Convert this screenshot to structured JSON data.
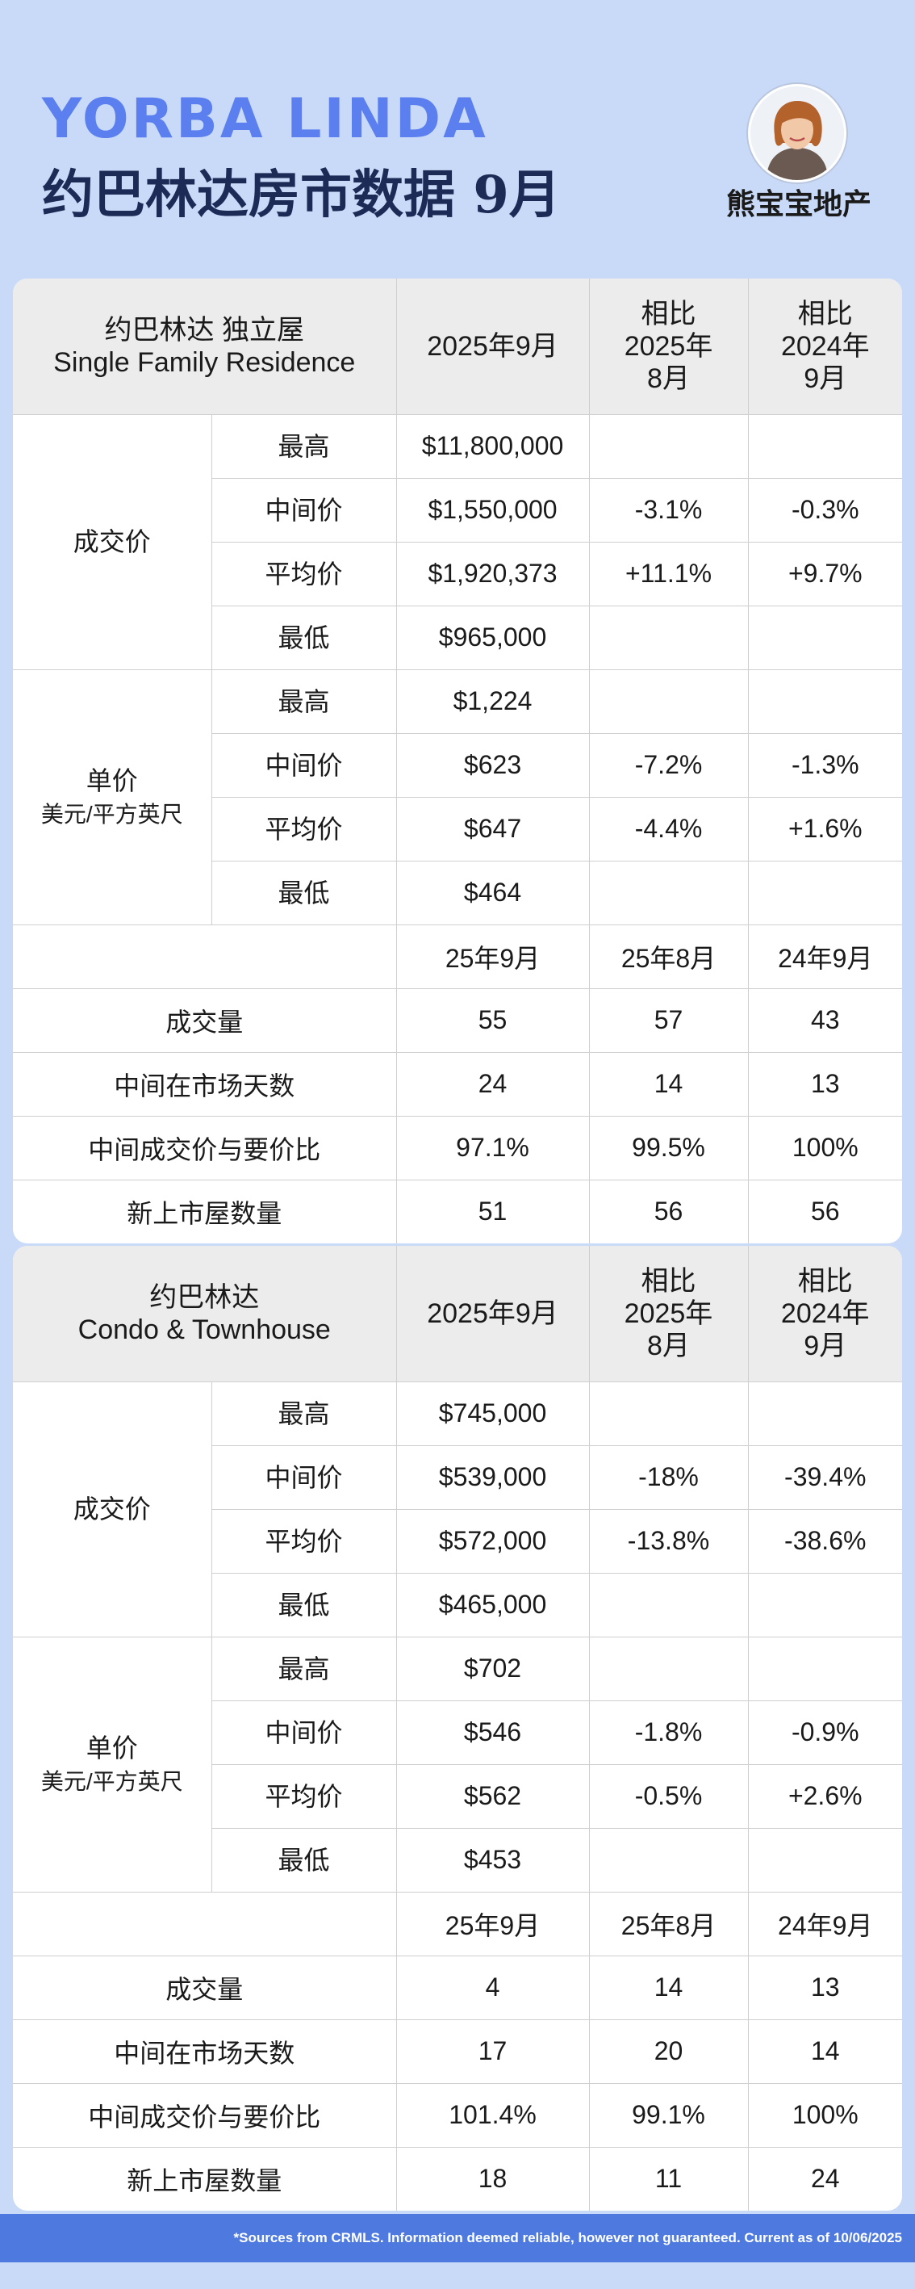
{
  "header": {
    "city": "YORBA LINDA",
    "subtitle": "约巴林达房市数据 9月",
    "brand": "熊宝宝地产"
  },
  "sfr": {
    "title_line1": "约巴林达  独立屋",
    "title_line2": "Single Family Residence",
    "col_current": "2025年9月",
    "col_vs_prev_month": [
      "相比",
      "2025年",
      "8月"
    ],
    "col_vs_prev_year": [
      "相比",
      "2024年",
      "9月"
    ],
    "price": {
      "label": "成交价",
      "rows": [
        {
          "label": "最高",
          "value": "$11,800,000",
          "mom": "",
          "yoy": ""
        },
        {
          "label": "中间价",
          "value": "$1,550,000",
          "mom": "-3.1%",
          "yoy": "-0.3%"
        },
        {
          "label": "平均价",
          "value": "$1,920,373",
          "mom": "+11.1%",
          "yoy": "+9.7%"
        },
        {
          "label": "最低",
          "value": "$965,000",
          "mom": "",
          "yoy": ""
        }
      ]
    },
    "unit": {
      "label": "单价",
      "sublabel": "美元/平方英尺",
      "rows": [
        {
          "label": "最高",
          "value": "$1,224",
          "mom": "",
          "yoy": ""
        },
        {
          "label": "中间价",
          "value": "$623",
          "mom": "-7.2%",
          "yoy": "-1.3%"
        },
        {
          "label": "平均价",
          "value": "$647",
          "mom": "-4.4%",
          "yoy": "+1.6%"
        },
        {
          "label": "最低",
          "value": "$464",
          "mom": "",
          "yoy": ""
        }
      ]
    },
    "stats_headers": [
      "25年9月",
      "25年8月",
      "24年9月"
    ],
    "stats": [
      {
        "label": "成交量",
        "values": [
          "55",
          "57",
          "43"
        ]
      },
      {
        "label": "中间在市场天数",
        "values": [
          "24",
          "14",
          "13"
        ]
      },
      {
        "label": "中间成交价与要价比",
        "values": [
          "97.1%",
          "99.5%",
          "100%"
        ]
      },
      {
        "label": "新上市屋数量",
        "values": [
          "51",
          "56",
          "56"
        ]
      }
    ]
  },
  "condo": {
    "title_line1": "约巴林达",
    "title_line2": "Condo & Townhouse",
    "col_current": "2025年9月",
    "col_vs_prev_month": [
      "相比",
      "2025年",
      "8月"
    ],
    "col_vs_prev_year": [
      "相比",
      "2024年",
      "9月"
    ],
    "price": {
      "label": "成交价",
      "rows": [
        {
          "label": "最高",
          "value": "$745,000",
          "mom": "",
          "yoy": ""
        },
        {
          "label": "中间价",
          "value": "$539,000",
          "mom": "-18%",
          "yoy": "-39.4%"
        },
        {
          "label": "平均价",
          "value": "$572,000",
          "mom": "-13.8%",
          "yoy": "-38.6%"
        },
        {
          "label": "最低",
          "value": "$465,000",
          "mom": "",
          "yoy": ""
        }
      ]
    },
    "unit": {
      "label": "单价",
      "sublabel": "美元/平方英尺",
      "rows": [
        {
          "label": "最高",
          "value": "$702",
          "mom": "",
          "yoy": ""
        },
        {
          "label": "中间价",
          "value": "$546",
          "mom": "-1.8%",
          "yoy": "-0.9%"
        },
        {
          "label": "平均价",
          "value": "$562",
          "mom": "-0.5%",
          "yoy": "+2.6%"
        },
        {
          "label": "最低",
          "value": "$453",
          "mom": "",
          "yoy": ""
        }
      ]
    },
    "stats_headers": [
      "25年9月",
      "25年8月",
      "24年9月"
    ],
    "stats": [
      {
        "label": "成交量",
        "values": [
          "4",
          "14",
          "13"
        ]
      },
      {
        "label": "中间在市场天数",
        "values": [
          "17",
          "20",
          "14"
        ]
      },
      {
        "label": "中间成交价与要价比",
        "values": [
          "101.4%",
          "99.1%",
          "100%"
        ]
      },
      {
        "label": "新上市屋数量",
        "values": [
          "18",
          "11",
          "24"
        ]
      }
    ]
  },
  "colors": {
    "background": "#c9daf8",
    "city_blue": "#5b7fee",
    "negative": "#d9331c",
    "positive": "#138a13",
    "footer_bar": "#4e7ae0"
  },
  "footer": {
    "text": "*Sources from CRMLS. Information deemed reliable, however not guaranteed. Current as of 10/06/2025"
  }
}
